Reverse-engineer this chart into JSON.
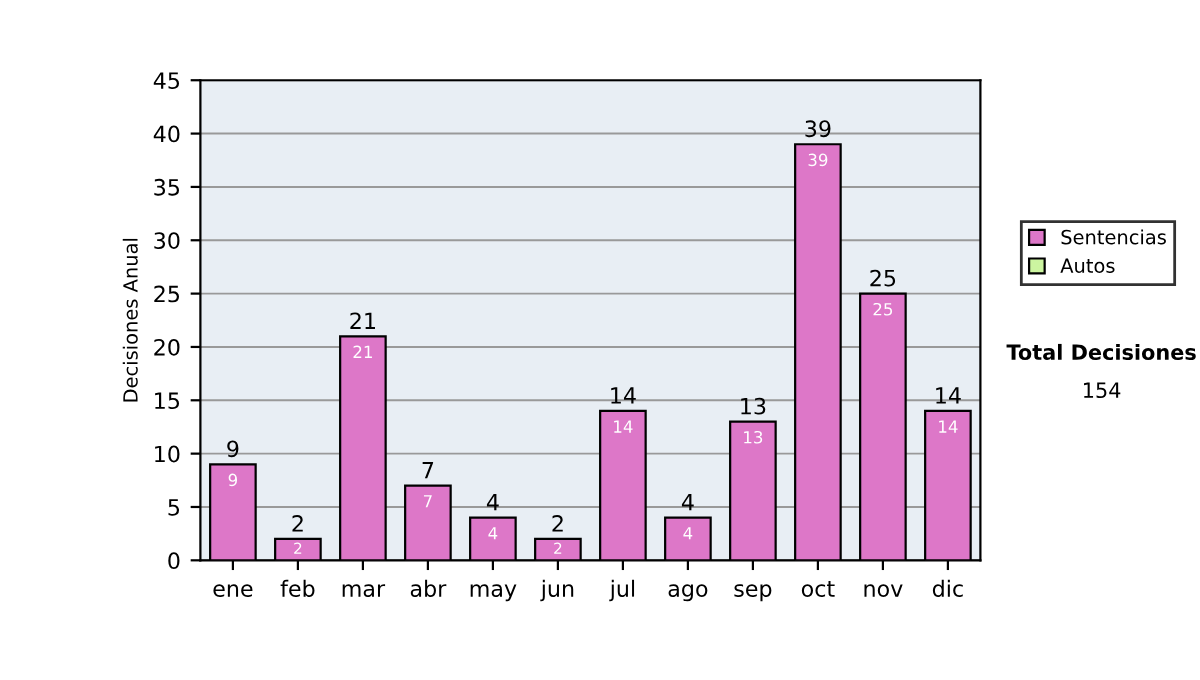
{
  "chart_data": {
    "type": "bar",
    "ylabel": "Decisiones Anual",
    "categories": [
      "ene",
      "feb",
      "mar",
      "abr",
      "may",
      "jun",
      "jul",
      "ago",
      "sep",
      "oct",
      "nov",
      "dic"
    ],
    "series": [
      {
        "name": "Sentencias",
        "color": "#dd77c8",
        "values": [
          9,
          2,
          21,
          7,
          4,
          2,
          14,
          4,
          13,
          39,
          25,
          14
        ],
        "value_labels": [
          "9",
          "2",
          "21",
          "7",
          "4",
          "2",
          "14",
          "4",
          "13",
          "39",
          "25",
          "14"
        ]
      },
      {
        "name": "Autos",
        "color": "#ccf5a0",
        "values": [
          null,
          null,
          null,
          null,
          null,
          null,
          null,
          null,
          null,
          null,
          null,
          null
        ]
      }
    ],
    "ylim": [
      0,
      45
    ],
    "yticks": [
      0,
      5,
      10,
      15,
      20,
      25,
      30,
      35,
      40,
      45
    ],
    "grid": "y",
    "legend": "right",
    "totals": [
      "9",
      "2",
      "21",
      "7",
      "4",
      "2",
      "14",
      "4",
      "13",
      "39",
      "25",
      "14"
    ],
    "annotations": [
      "Total Decisiones",
      "154"
    ]
  }
}
